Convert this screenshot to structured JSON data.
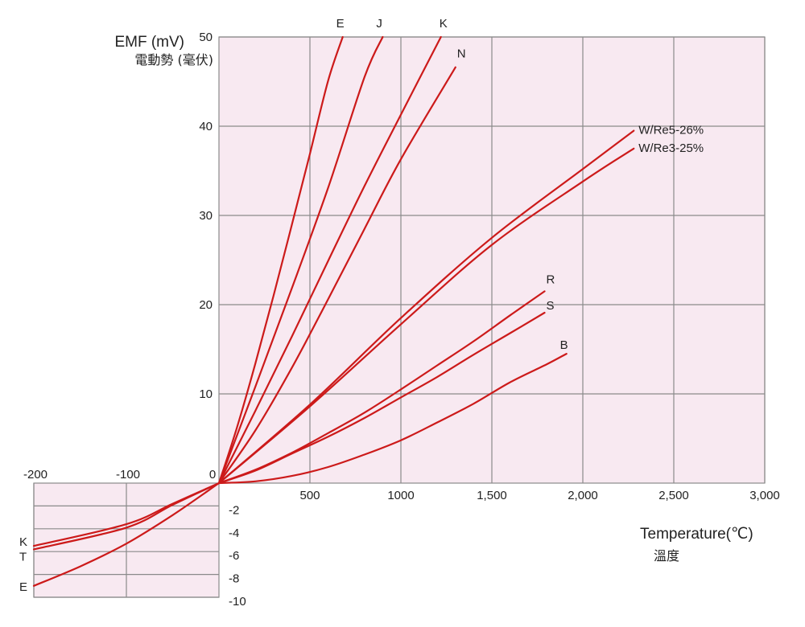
{
  "chart_data": {
    "type": "line",
    "ylabel": "EMF (mV)",
    "ylabel_sub": "電動勢 (毫伏)",
    "xlabel": "Temperature(℃)",
    "xlabel_sub": "溫度",
    "x_ticks_pos": [
      {
        "value": 500,
        "label": "500"
      },
      {
        "value": 1000,
        "label": "1000"
      },
      {
        "value": 1500,
        "label": "1,500"
      },
      {
        "value": 2000,
        "label": "2,000"
      },
      {
        "value": 2500,
        "label": "2,500"
      },
      {
        "value": 3000,
        "label": "3,000"
      }
    ],
    "x_ticks_neg": [
      {
        "value": -200,
        "label": "-200"
      },
      {
        "value": -100,
        "label": "-100"
      }
    ],
    "origin_label": "0",
    "y_ticks_pos": [
      {
        "value": 10,
        "label": "10"
      },
      {
        "value": 20,
        "label": "20"
      },
      {
        "value": 30,
        "label": "30"
      },
      {
        "value": 40,
        "label": "40"
      },
      {
        "value": 50,
        "label": "50"
      }
    ],
    "y_ticks_neg": [
      {
        "value": -2,
        "label": "-2"
      },
      {
        "value": -4,
        "label": "-4"
      },
      {
        "value": -6,
        "label": "-6"
      },
      {
        "value": -8,
        "label": "-8"
      },
      {
        "value": -10,
        "label": "-10"
      }
    ],
    "xlim": [
      -200,
      3000
    ],
    "ylim": [
      -10,
      50
    ],
    "grid": true,
    "line_color": "#cc1a1a",
    "background_color": "#f8e9f1",
    "series": [
      {
        "name": "E",
        "label_pos": "end",
        "x": [
          0,
          100,
          200,
          300,
          400,
          500,
          600,
          680
        ],
        "y": [
          0,
          6.3,
          13.4,
          21.0,
          28.9,
          36.9,
          45.1,
          50.0
        ]
      },
      {
        "name": "J",
        "label_pos": "end",
        "x": [
          0,
          200,
          400,
          600,
          800,
          900
        ],
        "y": [
          0,
          10.8,
          21.8,
          33.1,
          45.5,
          50.0
        ]
      },
      {
        "name": "K",
        "label_pos": "end",
        "x": [
          0,
          200,
          400,
          600,
          800,
          1000,
          1220
        ],
        "y": [
          0,
          8.1,
          16.4,
          24.9,
          33.3,
          41.3,
          50.0
        ]
      },
      {
        "name": "N",
        "label_pos": "end",
        "x": [
          0,
          200,
          400,
          600,
          800,
          1000,
          1300
        ],
        "y": [
          0,
          5.9,
          12.9,
          20.6,
          28.5,
          36.3,
          46.6
        ]
      },
      {
        "name": "W/Re5-26%",
        "label_pos": "end",
        "x": [
          0,
          500,
          1000,
          1500,
          2000,
          2280
        ],
        "y": [
          0,
          8.8,
          18.5,
          27.5,
          35.2,
          39.5
        ]
      },
      {
        "name": "W/Re3-25%",
        "label_pos": "end",
        "x": [
          0,
          500,
          1000,
          1500,
          2000,
          2280
        ],
        "y": [
          0,
          8.6,
          17.8,
          26.7,
          33.8,
          37.5
        ]
      },
      {
        "name": "R",
        "label_pos": "end",
        "x": [
          0,
          200,
          400,
          600,
          800,
          1000,
          1200,
          1400,
          1600,
          1790
        ],
        "y": [
          0,
          1.5,
          3.4,
          5.6,
          7.9,
          10.5,
          13.2,
          15.9,
          18.8,
          21.5
        ]
      },
      {
        "name": "S",
        "label_pos": "end",
        "x": [
          0,
          200,
          400,
          600,
          800,
          1000,
          1200,
          1400,
          1600,
          1790
        ],
        "y": [
          0,
          1.4,
          3.3,
          5.2,
          7.3,
          9.6,
          11.9,
          14.4,
          16.8,
          19.1
        ]
      },
      {
        "name": "B",
        "label_pos": "end",
        "x": [
          0,
          200,
          400,
          600,
          800,
          1000,
          1200,
          1400,
          1600,
          1800,
          1910
        ],
        "y": [
          0,
          0.2,
          0.8,
          1.8,
          3.2,
          4.8,
          6.8,
          8.9,
          11.3,
          13.3,
          14.5
        ]
      },
      {
        "name": "K",
        "label_pos": "start",
        "x": [
          -200,
          -100,
          -50,
          0
        ],
        "y": [
          -5.5,
          -3.6,
          -1.8,
          0
        ]
      },
      {
        "name": "T",
        "label_pos": "start",
        "x": [
          -200,
          -100,
          -50,
          0
        ],
        "y": [
          -5.8,
          -3.9,
          -1.9,
          0
        ]
      },
      {
        "name": "E",
        "label_pos": "start",
        "x": [
          -200,
          -150,
          -100,
          -50,
          0
        ],
        "y": [
          -9.0,
          -7.3,
          -5.3,
          -2.8,
          0
        ]
      }
    ]
  }
}
